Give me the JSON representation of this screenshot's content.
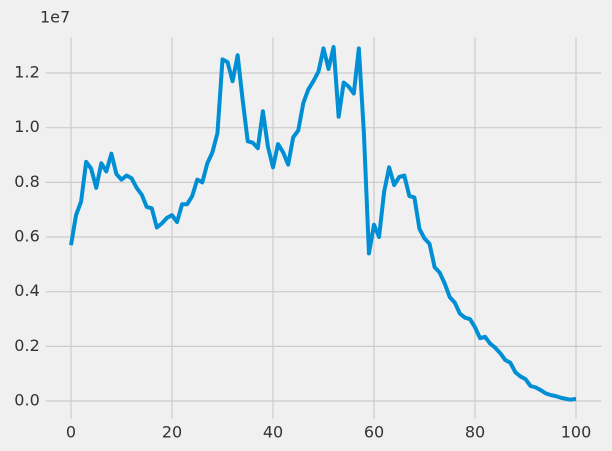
{
  "chart_data": {
    "type": "line",
    "offset_label": "1e7",
    "x": [
      0,
      1,
      2,
      3,
      4,
      5,
      6,
      7,
      8,
      9,
      10,
      11,
      12,
      13,
      14,
      15,
      16,
      17,
      18,
      19,
      20,
      21,
      22,
      23,
      24,
      25,
      26,
      27,
      28,
      29,
      30,
      31,
      32,
      33,
      34,
      35,
      36,
      37,
      38,
      39,
      40,
      41,
      42,
      43,
      44,
      45,
      46,
      47,
      48,
      49,
      50,
      51,
      52,
      53,
      54,
      55,
      56,
      57,
      58,
      59,
      60,
      61,
      62,
      63,
      64,
      65,
      66,
      67,
      68,
      69,
      70,
      71,
      72,
      73,
      74,
      75,
      76,
      77,
      78,
      79,
      80,
      81,
      82,
      83,
      84,
      85,
      86,
      87,
      88,
      89,
      90,
      91,
      92,
      93,
      94,
      95,
      96,
      97,
      98,
      99,
      100
    ],
    "series": [
      {
        "color": "#008fd5",
        "values": [
          5700000,
          6800000,
          7300000,
          8750000,
          8500000,
          7800000,
          8700000,
          8400000,
          9050000,
          8300000,
          8100000,
          8250000,
          8150000,
          7800000,
          7550000,
          7100000,
          7050000,
          6350000,
          6500000,
          6700000,
          6800000,
          6550000,
          7200000,
          7200000,
          7500000,
          8100000,
          8000000,
          8700000,
          9100000,
          9800000,
          12500000,
          12400000,
          11700000,
          12650000,
          11000000,
          9500000,
          9450000,
          9250000,
          10600000,
          9300000,
          8550000,
          9400000,
          9100000,
          8650000,
          9650000,
          9900000,
          10900000,
          11400000,
          11700000,
          12050000,
          12900000,
          12150000,
          12950000,
          10400000,
          11650000,
          11500000,
          11250000,
          12900000,
          9800000,
          5400000,
          6450000,
          6000000,
          7650000,
          8550000,
          7900000,
          8200000,
          8250000,
          7500000,
          7450000,
          6300000,
          5950000,
          5750000,
          4900000,
          4700000,
          4300000,
          3800000,
          3600000,
          3200000,
          3050000,
          3000000,
          2700000,
          2300000,
          2350000,
          2100000,
          1950000,
          1750000,
          1500000,
          1400000,
          1050000,
          900000,
          800000,
          550000,
          500000,
          400000,
          280000,
          220000,
          180000,
          120000,
          80000,
          50000,
          80000
        ]
      }
    ],
    "xlim": [
      -5,
      105
    ],
    "xticks": [
      0,
      20,
      40,
      60,
      80,
      100
    ],
    "ylim": [
      -650000,
      13300000
    ],
    "yticks": [
      {
        "value": 0,
        "label": "0.0"
      },
      {
        "value": 2000000,
        "label": "0.2"
      },
      {
        "value": 4000000,
        "label": "0.4"
      },
      {
        "value": 6000000,
        "label": "0.6"
      },
      {
        "value": 8000000,
        "label": "0.8"
      },
      {
        "value": 10000000,
        "label": "1.0"
      },
      {
        "value": 12000000,
        "label": "1.2"
      }
    ],
    "grid": true
  }
}
